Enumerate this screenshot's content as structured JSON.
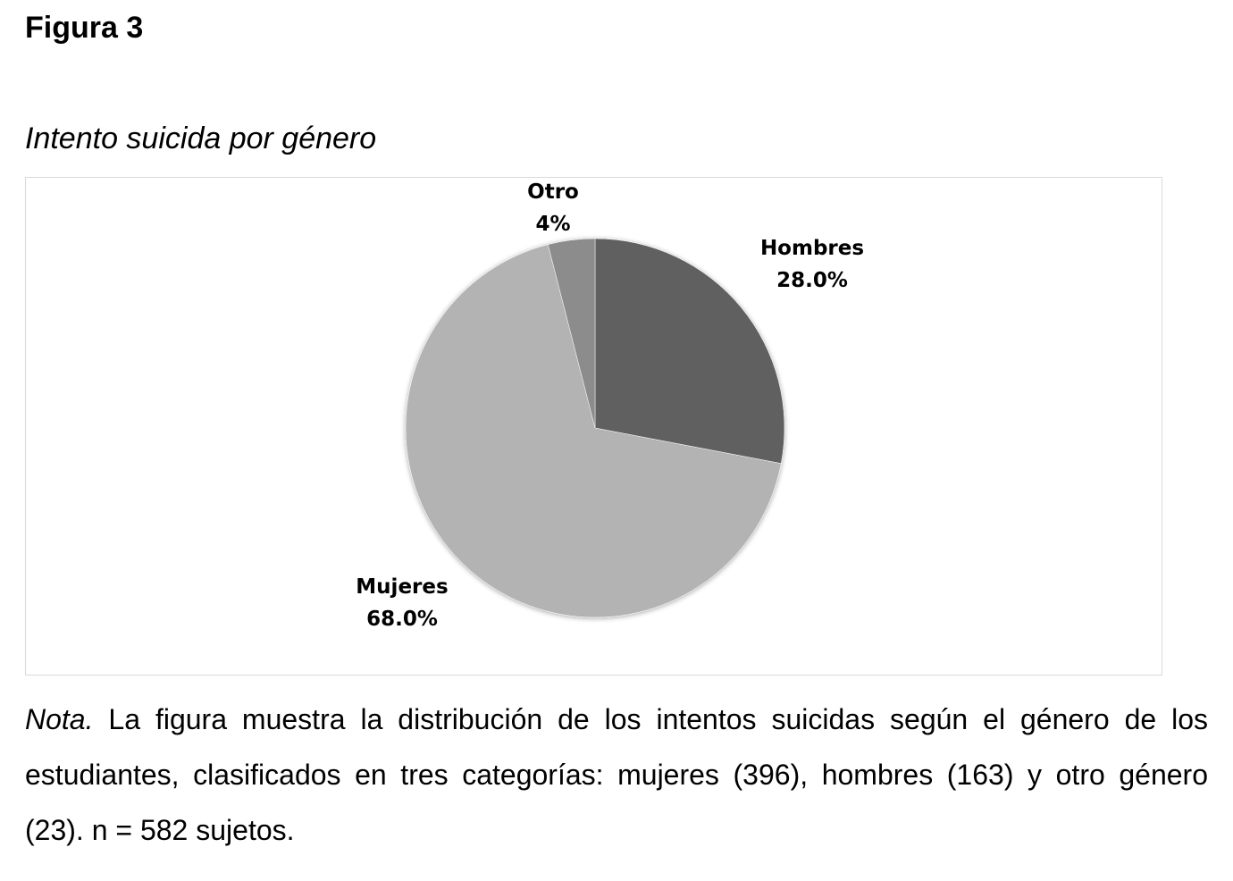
{
  "figure": {
    "label": "Figura 3",
    "title": "Intento suicida por género"
  },
  "chart_data": {
    "type": "pie",
    "title": "",
    "slices": [
      {
        "name": "Hombres",
        "value": 28.0,
        "value_label": "28.0%",
        "color": "#606060"
      },
      {
        "name": "Mujeres",
        "value": 68.0,
        "value_label": "68.0%",
        "color": "#b3b3b3"
      },
      {
        "name": "Otro",
        "value": 4,
        "value_label": "4%",
        "color": "#8c8c8c"
      }
    ],
    "start_angle_deg": 0,
    "direction": "clockwise",
    "legend": "none",
    "labels": "outside"
  },
  "note": {
    "lead": "Nota.",
    "text": " La figura muestra la distribución de los intentos suicidas según el género de los estudiantes, clasificados en tres categorías: mujeres (396), hombres (163) y otro género (23). n = 582 sujetos."
  }
}
